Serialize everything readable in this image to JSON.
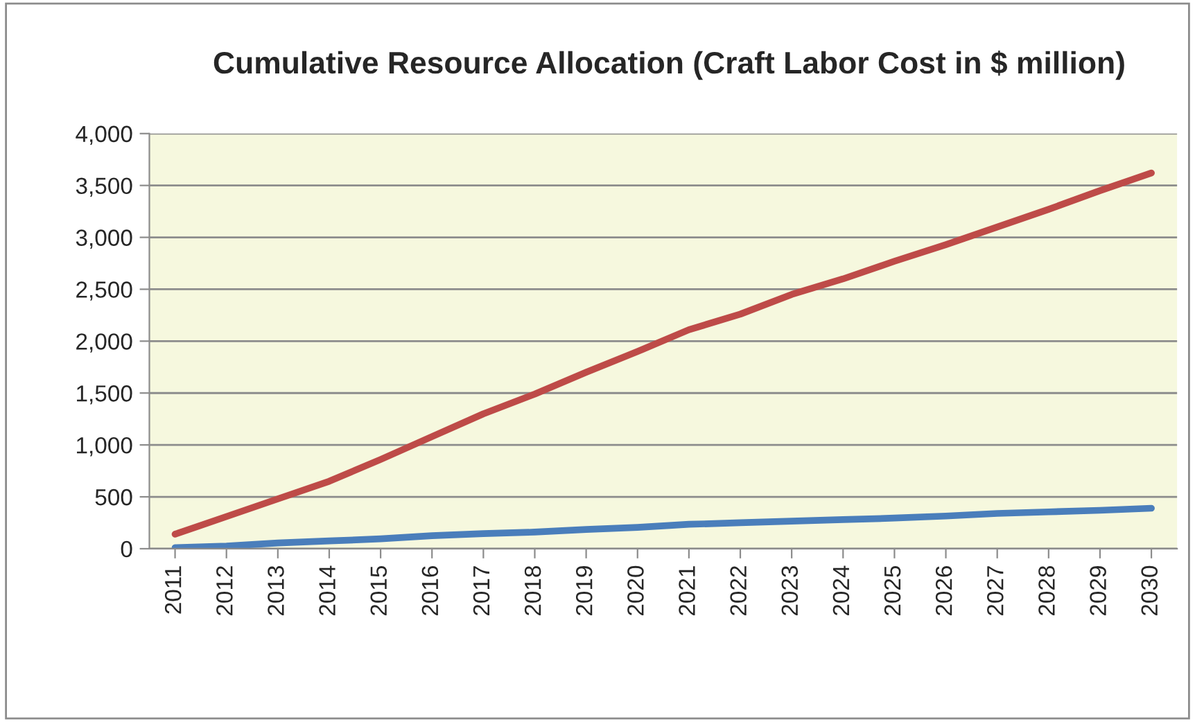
{
  "chart_data": {
    "type": "line",
    "title": "Cumulative Resource Allocation (Craft Labor Cost in $ million)",
    "categories": [
      "2011",
      "2012",
      "2013",
      "2014",
      "2015",
      "2016",
      "2017",
      "2018",
      "2019",
      "2020",
      "2021",
      "2022",
      "2023",
      "2024",
      "2025",
      "2026",
      "2027",
      "2028",
      "2029",
      "2030"
    ],
    "series": [
      {
        "color": "#4a7ebb",
        "values": [
          10,
          25,
          55,
          75,
          95,
          125,
          145,
          160,
          185,
          205,
          235,
          250,
          265,
          280,
          295,
          315,
          340,
          355,
          370,
          390
        ]
      },
      {
        "color": "#be4b48",
        "values": [
          140,
          310,
          480,
          650,
          860,
          1080,
          1300,
          1490,
          1700,
          1900,
          2110,
          2260,
          2450,
          2600,
          2770,
          2930,
          3100,
          3270,
          3450,
          3620
        ]
      }
    ],
    "ylim": [
      0,
      4000
    ],
    "yticks": [
      {
        "value": 0,
        "label": "0"
      },
      {
        "value": 500,
        "label": "500"
      },
      {
        "value": 1000,
        "label": "1,000"
      },
      {
        "value": 1500,
        "label": "1,500"
      },
      {
        "value": 2000,
        "label": "2,000"
      },
      {
        "value": 2500,
        "label": "2,500"
      },
      {
        "value": 3000,
        "label": "3,000"
      },
      {
        "value": 3500,
        "label": "3,500"
      },
      {
        "value": 4000,
        "label": "4,000"
      }
    ],
    "grid": "y",
    "marker": "none",
    "line_style": "solid"
  }
}
